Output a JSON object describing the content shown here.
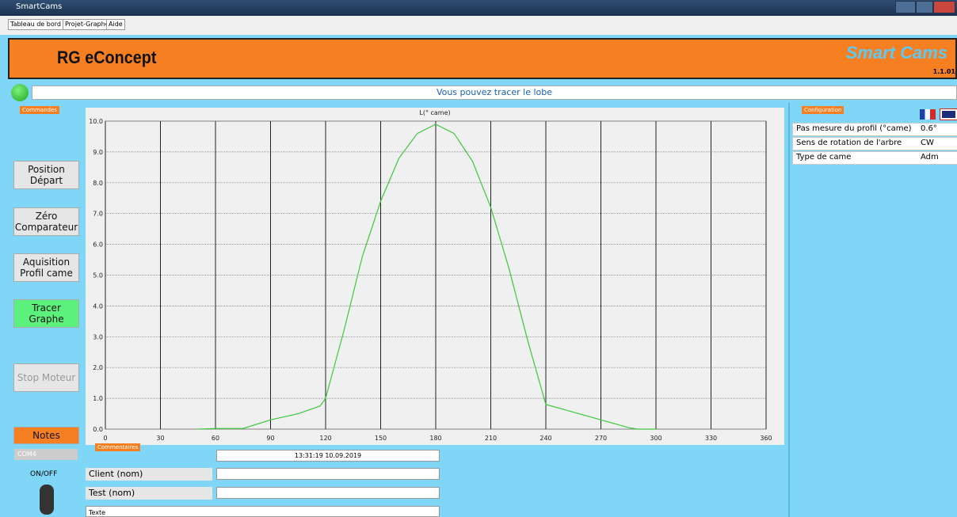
{
  "window": {
    "title": "SmartCams"
  },
  "tabs": [
    "Tableau de bord",
    "Projet-Graphe",
    "Aide"
  ],
  "header": {
    "brand": "RG eConcept",
    "product": "Smart Cams",
    "version": "1.1.01"
  },
  "status": "Vous pouvez tracer le lobe",
  "commands": {
    "label": "Commandes",
    "buttons": [
      "Position Départ",
      "Zéro Comparateur",
      "Aquisition Profil came",
      "Tracer Graphe",
      "Stop Moteur"
    ],
    "notes": "Notes",
    "port": "COM4",
    "power": "ON/OFF"
  },
  "comments": {
    "label": "Commentaires",
    "timestamp": "13:31:19 10.09.2019",
    "fields": [
      "Client (nom)",
      "Test (nom)"
    ],
    "text": "Texte"
  },
  "configuration": {
    "label": "Configuration",
    "rows": [
      [
        "Pas mesure du profil (°came)",
        "0.6°"
      ],
      [
        "Sens de rotation de l'arbre",
        "CW"
      ],
      [
        "Type de came",
        "Adm"
      ]
    ]
  },
  "chart_data": {
    "type": "line",
    "title": "L(° came)",
    "color": "#3cc83c",
    "x": [
      50,
      60,
      75,
      90,
      105,
      117,
      120,
      130,
      140,
      150,
      160,
      170,
      180,
      190,
      200,
      210,
      220,
      230,
      240,
      255,
      270,
      285,
      290,
      300
    ],
    "series": [
      {
        "color": "#3cc83c",
        "values": [
          0,
          0.02,
          0.02,
          0.3,
          0.5,
          0.75,
          1.0,
          3.2,
          5.6,
          7.4,
          8.8,
          9.6,
          9.9,
          9.6,
          8.7,
          7.2,
          5.2,
          2.9,
          0.8,
          0.55,
          0.3,
          0.05,
          0,
          0
        ]
      }
    ],
    "xlim": [
      0,
      360
    ],
    "xticks": [
      0,
      30,
      60,
      90,
      120,
      150,
      180,
      210,
      240,
      270,
      300,
      330,
      360
    ],
    "ylim": [
      0,
      10
    ],
    "yticks": [
      {
        "value": 0,
        "label": "0.0"
      },
      {
        "value": 1,
        "label": "1.0"
      },
      {
        "value": 2,
        "label": "2.0"
      },
      {
        "value": 3,
        "label": "3.0"
      },
      {
        "value": 4,
        "label": "4.0"
      },
      {
        "value": 5,
        "label": "5.0"
      },
      {
        "value": 6,
        "label": "6.0"
      },
      {
        "value": 7,
        "label": "7.0"
      },
      {
        "value": 8,
        "label": "8.0"
      },
      {
        "value": 9,
        "label": "9.0"
      },
      {
        "value": 10,
        "label": "10.0"
      }
    ],
    "grid": true
  }
}
